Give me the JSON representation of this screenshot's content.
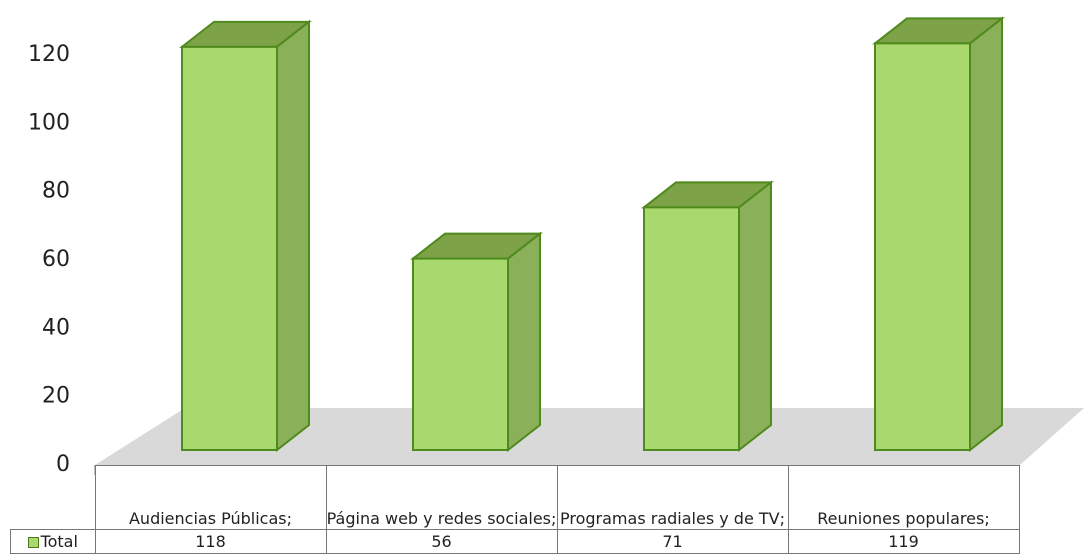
{
  "chart_data": {
    "type": "bar3d",
    "categories": [
      "Audiencias Públicas;",
      "Página web y redes sociales;",
      "Programas radiales y de TV;",
      "Reuniones populares;"
    ],
    "series": [
      {
        "name": "Total",
        "color": "#a9d86e",
        "values": [
          118,
          56,
          71,
          119
        ]
      }
    ],
    "ylim": [
      0,
      120
    ],
    "yticks": [
      0,
      20,
      40,
      60,
      80,
      100,
      120
    ],
    "data_table": true
  }
}
